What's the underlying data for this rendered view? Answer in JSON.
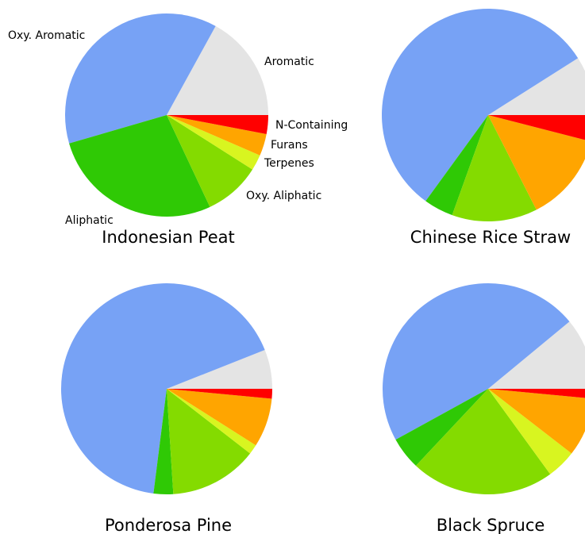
{
  "colors": {
    "Oxy. Aromatic": "#77a2f5",
    "Aromatic": "#e4e4e4",
    "N-Containing": "#ff0000",
    "Furans": "#ffa500",
    "Terpenes": "#d8f520",
    "Oxy. Aliphatic": "#84db00",
    "Aliphatic": "#2fc905"
  },
  "chart_data": [
    {
      "type": "pie",
      "title": "Indonesian Peat",
      "slice_order": [
        "Aromatic",
        "Oxy. Aromatic",
        "Aliphatic",
        "Oxy. Aliphatic",
        "Terpenes",
        "Furans",
        "N-Containing"
      ],
      "values": {
        "Aromatic": 17.0,
        "Oxy. Aromatic": 37.5,
        "Aliphatic": 27.5,
        "Oxy. Aliphatic": 9.0,
        "Terpenes": 2.5,
        "Furans": 3.5,
        "N-Containing": 3.0
      },
      "labels": [
        "Oxy. Aromatic",
        "Aromatic",
        "N-Containing",
        "Furans",
        "Terpenes",
        "Oxy. Aliphatic",
        "Aliphatic"
      ]
    },
    {
      "type": "pie",
      "title": "Chinese Rice Straw",
      "slice_order": [
        "Aromatic",
        "Oxy. Aromatic",
        "Aliphatic",
        "Oxy. Aliphatic",
        "Terpenes",
        "Furans",
        "N-Containing"
      ],
      "values": {
        "Aromatic": 9.0,
        "Oxy. Aromatic": 56.0,
        "Aliphatic": 4.5,
        "Oxy. Aliphatic": 13.0,
        "Terpenes": 0.0,
        "Furans": 13.5,
        "N-Containing": 4.0
      },
      "labels": []
    },
    {
      "type": "pie",
      "title": "Ponderosa Pine",
      "slice_order": [
        "Aromatic",
        "Oxy. Aromatic",
        "Aliphatic",
        "Oxy. Aliphatic",
        "Terpenes",
        "Furans",
        "N-Containing"
      ],
      "values": {
        "Aromatic": 6.0,
        "Oxy. Aromatic": 67.0,
        "Aliphatic": 3.0,
        "Oxy. Aliphatic": 13.5,
        "Terpenes": 1.5,
        "Furans": 7.5,
        "N-Containing": 1.5
      },
      "labels": []
    },
    {
      "type": "pie",
      "title": "Black Spruce",
      "slice_order": [
        "Aromatic",
        "Oxy. Aromatic",
        "Aliphatic",
        "Oxy. Aliphatic",
        "Terpenes",
        "Furans",
        "N-Containing"
      ],
      "values": {
        "Aromatic": 11.0,
        "Oxy. Aromatic": 47.0,
        "Aliphatic": 5.0,
        "Oxy. Aliphatic": 22.0,
        "Terpenes": 4.5,
        "Furans": 9.0,
        "N-Containing": 1.5
      },
      "labels": []
    }
  ]
}
